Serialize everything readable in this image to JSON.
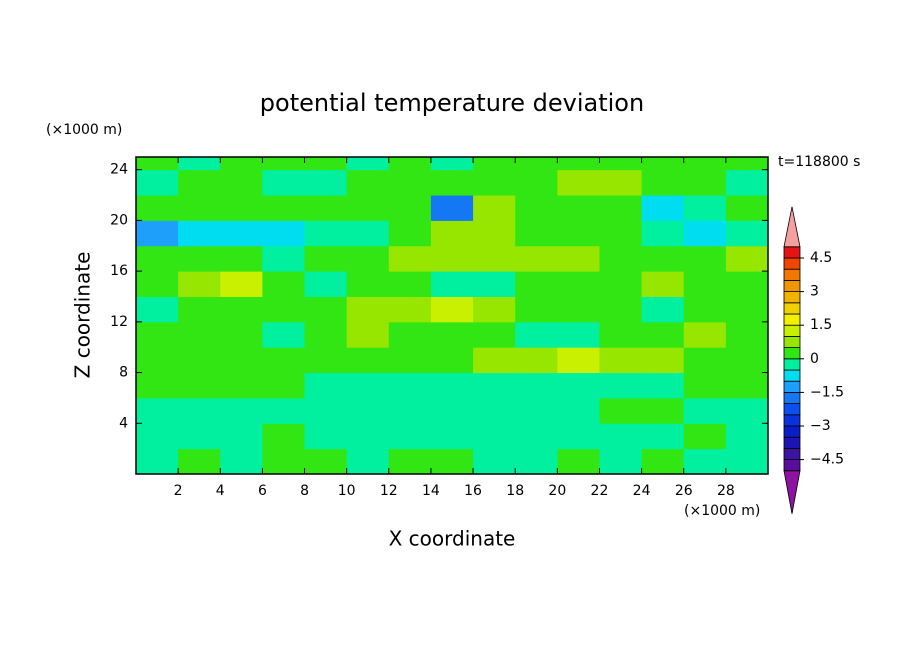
{
  "chart_data": {
    "type": "contour",
    "title": "potential temperature deviation",
    "xlabel": "X coordinate",
    "ylabel": "Z coordinate",
    "x_unit": "(×1000 m)",
    "y_unit": "(×1000 m)",
    "annotation": "t=118800 s",
    "xlim": [
      0,
      30
    ],
    "ylim": [
      0,
      25
    ],
    "xticks": [
      2,
      4,
      6,
      8,
      10,
      12,
      14,
      16,
      18,
      20,
      22,
      24,
      26,
      28
    ],
    "yticks": [
      4,
      8,
      12,
      16,
      20,
      24
    ],
    "x": [
      1,
      3,
      5,
      7,
      9,
      11,
      13,
      15,
      17,
      19,
      21,
      23,
      25,
      27,
      29
    ],
    "y": [
      1,
      3,
      5,
      7,
      9,
      11,
      13,
      15,
      17,
      19,
      21,
      23,
      25
    ],
    "z": [
      [
        -0.2,
        0.2,
        -0.2,
        0.2,
        0.1,
        -0.2,
        0.2,
        0.1,
        -0.2,
        -0.2,
        0.2,
        -0.2,
        0.1,
        -0.2,
        -0.2
      ],
      [
        -0.3,
        -0.3,
        -0.2,
        0.3,
        -0.2,
        -0.3,
        -0.2,
        -0.3,
        -0.3,
        -0.3,
        -0.3,
        -0.3,
        -0.2,
        0.4,
        -0.3
      ],
      [
        -0.3,
        -0.3,
        -0.2,
        -0.3,
        -0.3,
        -0.3,
        -0.3,
        -0.3,
        -0.3,
        -0.3,
        -0.3,
        0.2,
        0.3,
        -0.3,
        -0.3
      ],
      [
        0.3,
        0.5,
        0.3,
        0.2,
        -0.3,
        -0.3,
        -0.2,
        -0.4,
        -0.3,
        -0.3,
        -0.3,
        -0.3,
        -0.3,
        0.2,
        0.3
      ],
      [
        0.3,
        0.2,
        0.3,
        0.2,
        0.4,
        0.3,
        0.2,
        0.3,
        0.6,
        0.9,
        1.1,
        0.9,
        0.6,
        0.3,
        0.3
      ],
      [
        0.2,
        0.5,
        0.3,
        -0.3,
        0.3,
        0.6,
        0.4,
        0.3,
        0.2,
        -0.3,
        -0.3,
        0.3,
        0.4,
        0.6,
        0.4
      ],
      [
        -0.3,
        0.3,
        0.4,
        0.3,
        0.5,
        0.6,
        0.9,
        1.1,
        0.9,
        0.5,
        0.3,
        0.2,
        -0.3,
        0.3,
        0.3
      ],
      [
        0.3,
        0.6,
        1.2,
        0.4,
        -0.3,
        0.3,
        0.2,
        -0.3,
        -0.3,
        0.3,
        0.3,
        0.4,
        0.6,
        0.5,
        0.3
      ],
      [
        0.4,
        0.3,
        0.2,
        -0.4,
        0.3,
        0.5,
        0.8,
        0.9,
        1.0,
        0.7,
        0.6,
        0.5,
        0.3,
        0.4,
        0.6
      ],
      [
        -1.1,
        -0.7,
        -0.6,
        -0.5,
        -0.3,
        -0.3,
        0.5,
        1.0,
        1.0,
        0.4,
        0.3,
        0.2,
        -0.3,
        -0.5,
        -0.4
      ],
      [
        0.5,
        0.3,
        0.3,
        0.2,
        0.3,
        0.4,
        0.3,
        -1.5,
        0.6,
        0.4,
        0.3,
        0.3,
        -0.8,
        -0.4,
        0.3
      ],
      [
        -0.3,
        0.2,
        0.3,
        -0.3,
        -0.3,
        0.3,
        0.5,
        0.3,
        0.3,
        0.4,
        0.7,
        0.9,
        0.5,
        0.3,
        -0.3
      ],
      [
        0.2,
        -0.3,
        0.3,
        0.3,
        0.2,
        -0.3,
        0.2,
        -0.3,
        0.3,
        0.2,
        0.3,
        0.2,
        0.3,
        0.2,
        0.3
      ]
    ],
    "levels": [
      -5,
      -4.5,
      -4,
      -3.5,
      -3,
      -2.5,
      -2,
      -1.5,
      -1,
      -0.5,
      0,
      0.5,
      1,
      1.5,
      2,
      2.5,
      3,
      3.5,
      4,
      4.5,
      5
    ],
    "colors": [
      "#5a0f9c",
      "#3c14a0",
      "#1e14b4",
      "#0a1ec8",
      "#0a32dc",
      "#0a50f0",
      "#1478f5",
      "#1ea0fa",
      "#00dcf0",
      "#00f0a0",
      "#32e614",
      "#96e600",
      "#c8f000",
      "#f0f000",
      "#f0d200",
      "#f0b400",
      "#f09600",
      "#f07800",
      "#f04600",
      "#e61414"
    ],
    "extend_colors": [
      "#8c14a0",
      "#f5a0a0"
    ],
    "colorbar_ticks": [
      {
        "value": -4.5,
        "label": "−4.5"
      },
      {
        "value": -3,
        "label": "−3"
      },
      {
        "value": -1.5,
        "label": "−1.5"
      },
      0,
      1.5,
      3,
      4.5
    ]
  }
}
